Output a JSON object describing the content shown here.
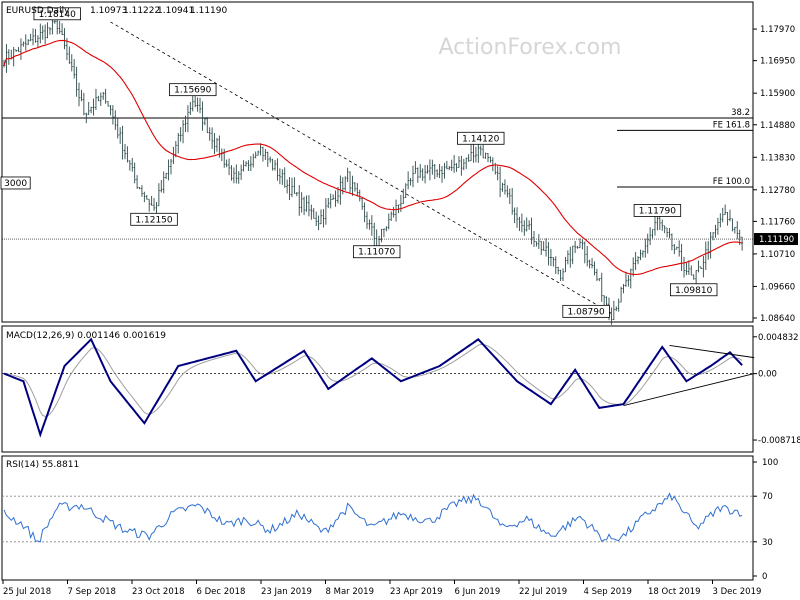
{
  "chart_data": [
    {
      "type": "ohlc",
      "title": "EURUSD,Daily",
      "ohlc_readout": [
        "1.10973",
        "1.11222",
        "1.10941",
        "1.11190"
      ],
      "watermark": "ActionForex.com",
      "ylim": [
        1.0864,
        1.1865
      ],
      "y_ticks": [
        "1.17970",
        "1.16950",
        "1.15900",
        "1.14880",
        "1.13830",
        "1.12780",
        "1.11760",
        "1.10710",
        "1.09660",
        "1.08640"
      ],
      "current_price": "1.11190",
      "x_tick_labels": [
        "25 Jul 2018",
        "7 Sep 2018",
        "23 Oct 2018",
        "6 Dec 2018",
        "23 Jan 2019",
        "8 Mar 2019",
        "23 Apr 2019",
        "6 Jun 2019",
        "22 Jul 2019",
        "4 Sep 2019",
        "18 Oct 2019",
        "3 Dec 2019"
      ],
      "moving_average": {
        "color": "#e00000"
      },
      "price_path": [
        [
          0,
          1.17
        ],
        [
          22,
          1.1814
        ],
        [
          33,
          1.153
        ],
        [
          42,
          1.158
        ],
        [
          54,
          1.131
        ],
        [
          62,
          1.1215
        ],
        [
          78,
          1.1569
        ],
        [
          96,
          1.13
        ],
        [
          105,
          1.142
        ],
        [
          122,
          1.124
        ],
        [
          130,
          1.118
        ],
        [
          142,
          1.132
        ],
        [
          154,
          1.1107
        ],
        [
          170,
          1.133
        ],
        [
          186,
          1.135
        ],
        [
          197,
          1.1412
        ],
        [
          212,
          1.12
        ],
        [
          230,
          1.101
        ],
        [
          238,
          1.112
        ],
        [
          251,
          1.0879
        ],
        [
          270,
          1.1179
        ],
        [
          285,
          1.0981
        ],
        [
          297,
          1.12
        ],
        [
          305,
          1.1119
        ]
      ],
      "annotations": [
        {
          "label": "1.18140",
          "x": 22,
          "y": 1.1814
        },
        {
          "label": "1.15690",
          "x": 78,
          "y": 1.1569
        },
        {
          "label": "1.12150",
          "x": 62,
          "y": 1.1215
        },
        {
          "label": "1.14120",
          "x": 197,
          "y": 1.1412
        },
        {
          "label": "1.11070",
          "x": 154,
          "y": 1.1107
        },
        {
          "label": "1.11790",
          "x": 270,
          "y": 1.1179
        },
        {
          "label": "1.09810",
          "x": 285,
          "y": 1.0981
        },
        {
          "label": "1.08790",
          "x": 251,
          "y": 1.0879
        },
        {
          "label": "3000",
          "x": 0,
          "y": 1.13
        }
      ],
      "horizontal_levels": [
        {
          "label": "38.2",
          "value": 1.151
        },
        {
          "label": "FE 161.8",
          "value": 1.147
        },
        {
          "label": "FE 100.0",
          "value": 1.1287
        }
      ],
      "trendline": {
        "from": [
          44,
          1.182
        ],
        "to": [
          251,
          1.0879
        ]
      }
    },
    {
      "type": "line",
      "title": "MACD(12,26,9) 0.001146 0.001619",
      "ylim": [
        -0.0095,
        0.0052
      ],
      "y_ticks": [
        "0.004832",
        "0.00",
        "-0.008718"
      ],
      "macd_color": "#000080",
      "signal_color": "#a0a0a0",
      "macd_path": [
        [
          0,
          0.0
        ],
        [
          8,
          -0.001
        ],
        [
          15,
          -0.008
        ],
        [
          25,
          0.001
        ],
        [
          36,
          0.0045
        ],
        [
          44,
          -0.001
        ],
        [
          58,
          -0.0065
        ],
        [
          72,
          0.001
        ],
        [
          96,
          0.003
        ],
        [
          104,
          -0.001
        ],
        [
          124,
          0.003
        ],
        [
          134,
          -0.002
        ],
        [
          152,
          0.002
        ],
        [
          164,
          -0.001
        ],
        [
          180,
          0.001
        ],
        [
          196,
          0.0045
        ],
        [
          212,
          -0.001
        ],
        [
          226,
          -0.004
        ],
        [
          236,
          0.0005
        ],
        [
          246,
          -0.0045
        ],
        [
          256,
          -0.004
        ],
        [
          272,
          0.0035
        ],
        [
          282,
          -0.001
        ],
        [
          292,
          0.001
        ],
        [
          300,
          0.0028
        ],
        [
          305,
          0.0011
        ]
      ],
      "trendlines": [
        {
          "from": [
            256,
            -0.0042
          ],
          "to": [
            310,
            0.0
          ]
        },
        {
          "from": [
            275,
            0.0037
          ],
          "to": [
            310,
            0.0021
          ]
        }
      ]
    },
    {
      "type": "line",
      "title": "RSI(14) 55.8811",
      "ylim": [
        0,
        100
      ],
      "y_ticks": [
        "100",
        "70",
        "30",
        "0"
      ],
      "levels": [
        70,
        30
      ],
      "rsi_color": "#3070d0",
      "rsi_path": [
        [
          0,
          55
        ],
        [
          8,
          45
        ],
        [
          14,
          30
        ],
        [
          22,
          60
        ],
        [
          32,
          62
        ],
        [
          40,
          52
        ],
        [
          50,
          40
        ],
        [
          60,
          35
        ],
        [
          70,
          55
        ],
        [
          80,
          62
        ],
        [
          92,
          45
        ],
        [
          100,
          50
        ],
        [
          110,
          40
        ],
        [
          122,
          55
        ],
        [
          132,
          38
        ],
        [
          142,
          60
        ],
        [
          152,
          42
        ],
        [
          164,
          55
        ],
        [
          176,
          48
        ],
        [
          188,
          65
        ],
        [
          196,
          68
        ],
        [
          206,
          42
        ],
        [
          216,
          50
        ],
        [
          226,
          35
        ],
        [
          238,
          52
        ],
        [
          248,
          32
        ],
        [
          256,
          35
        ],
        [
          266,
          55
        ],
        [
          276,
          70
        ],
        [
          286,
          42
        ],
        [
          296,
          60
        ],
        [
          305,
          56
        ]
      ]
    }
  ]
}
